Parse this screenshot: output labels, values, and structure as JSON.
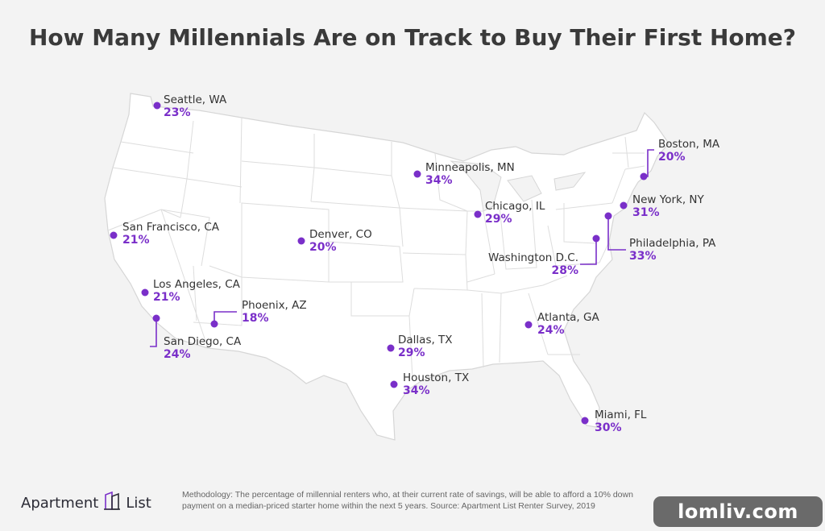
{
  "title": "How Many Millennials Are on Track to Buy Their First Home?",
  "accent_color": "#7a2fc9",
  "map_fill": "#ffffff",
  "map_border": "#d6d6d6",
  "cities": [
    {
      "name": "Seattle, WA",
      "pct": "23%"
    },
    {
      "name": "Boston, MA",
      "pct": "20%"
    },
    {
      "name": "Minneapolis, MN",
      "pct": "34%"
    },
    {
      "name": "Chicago, IL",
      "pct": "29%"
    },
    {
      "name": "New York, NY",
      "pct": "31%"
    },
    {
      "name": "San Francisco, CA",
      "pct": "21%"
    },
    {
      "name": "Denver, CO",
      "pct": "20%"
    },
    {
      "name": "Philadelphia, PA",
      "pct": "33%"
    },
    {
      "name": "Washington D.C.",
      "pct": "28%"
    },
    {
      "name": "Los Angeles, CA",
      "pct": "21%"
    },
    {
      "name": "Phoenix, AZ",
      "pct": "18%"
    },
    {
      "name": "Atlanta, GA",
      "pct": "24%"
    },
    {
      "name": "San Diego, CA",
      "pct": "24%"
    },
    {
      "name": "Dallas, TX",
      "pct": "29%"
    },
    {
      "name": "Houston, TX",
      "pct": "34%"
    },
    {
      "name": "Miami, FL",
      "pct": "30%"
    }
  ],
  "footer": {
    "logo_left": "Apartment",
    "logo_right": "List",
    "methodology": "Methodology: The percentage of millennial renters who, at their current rate of savings, will be able to afford a 10% down payment on a median-priced starter home within the next 5 years. Source: Apartment List Renter Survey, 2019"
  },
  "watermark": "lomliv.com"
}
